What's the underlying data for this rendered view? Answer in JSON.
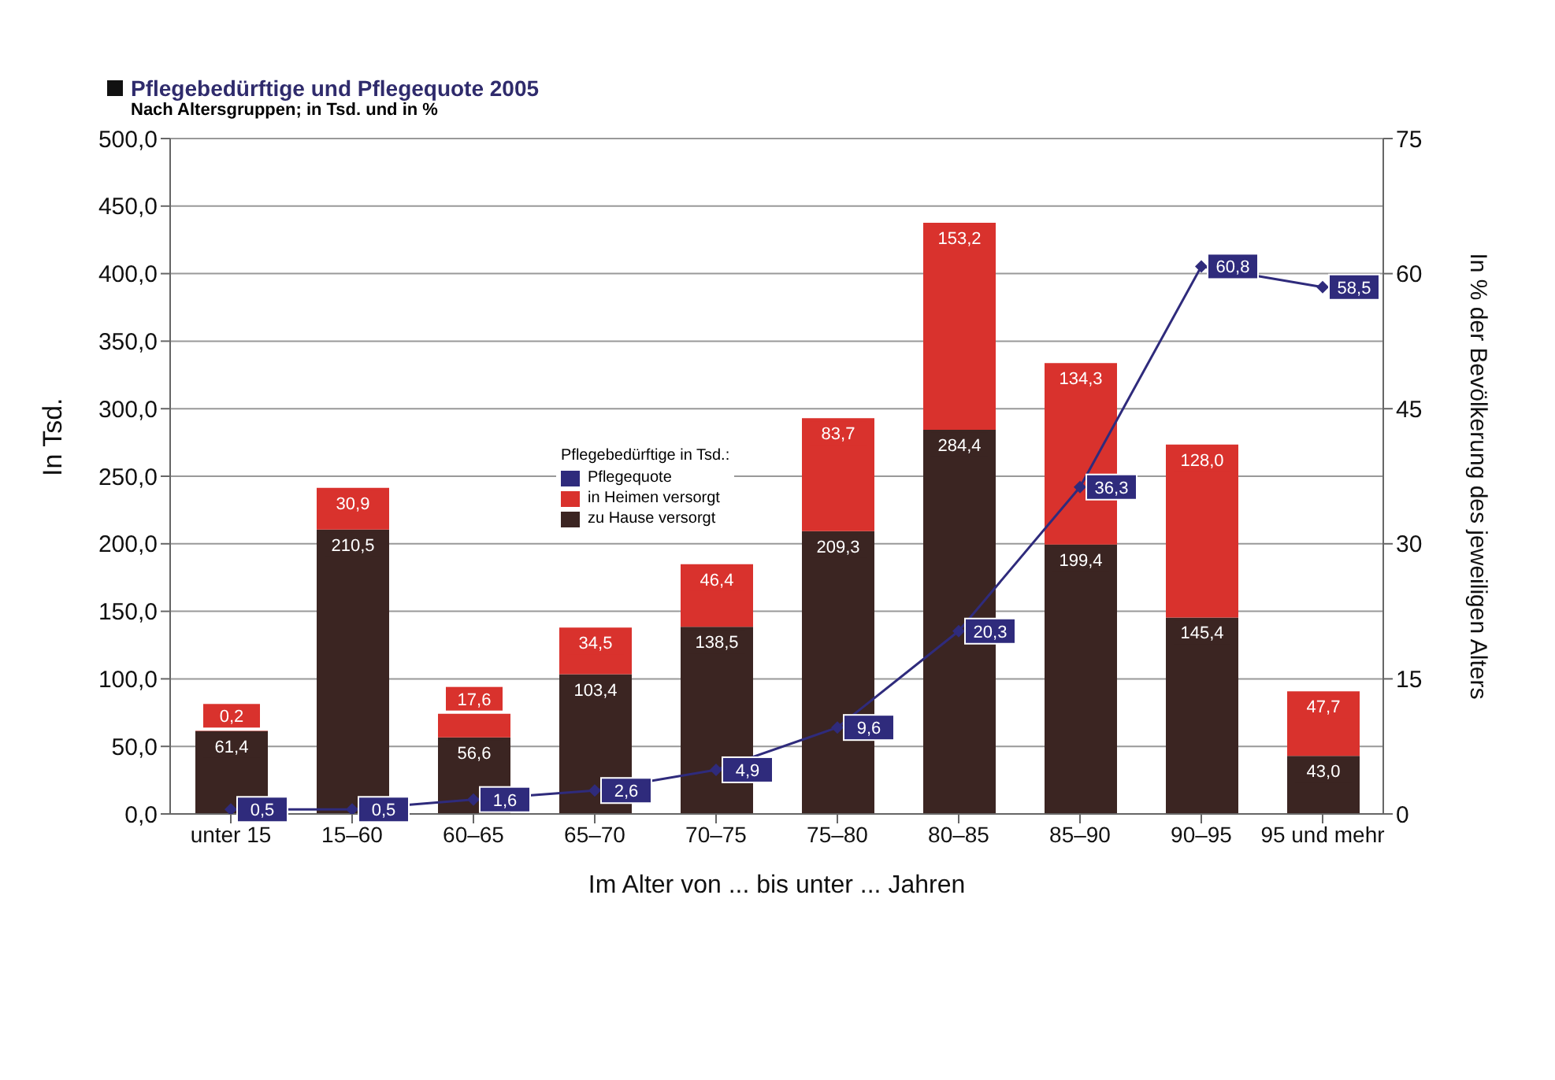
{
  "chart_data": {
    "type": "bar",
    "title": "Pflegebedürftige und Pflegequote 2005",
    "subtitle": "Nach Altersgruppen; in Tsd. und in %",
    "xlabel": "Im Alter von ... bis unter ... Jahren",
    "ylabel": "In Tsd.",
    "y2label": "In % der Bevölkerung des jeweiligen Alters",
    "legend_title": "Pflegebedürftige in Tsd.:",
    "categories": [
      "unter 15",
      "15–60",
      "60–65",
      "65–70",
      "70–75",
      "75–80",
      "80–85",
      "85–90",
      "90–95",
      "95 und mehr"
    ],
    "stacked": true,
    "series": [
      {
        "name": "zu Hause versorgt",
        "color": "#3b2522",
        "values": [
          61.4,
          210.5,
          56.6,
          103.4,
          138.5,
          209.3,
          284.4,
          199.4,
          145.4,
          43.0
        ],
        "value_labels": [
          "61,4",
          "210,5",
          "56,6",
          "103,4",
          "138,5",
          "209,3",
          "284,4",
          "199,4",
          "145,4",
          "43,0"
        ]
      },
      {
        "name": "in Heimen versorgt",
        "color": "#d9322d",
        "values": [
          0.2,
          30.9,
          17.6,
          34.5,
          46.4,
          83.7,
          153.2,
          134.3,
          128.0,
          47.7
        ],
        "value_labels": [
          "0,2",
          "30,9",
          "17,6",
          "34,5",
          "46,4",
          "83,7",
          "153,2",
          "134,3",
          "128,0",
          "47,7"
        ]
      },
      {
        "name": "Pflegequote",
        "type": "line",
        "axis": "y2",
        "color": "#2f2b7c",
        "marker": "diamond",
        "values": [
          0.5,
          0.5,
          1.6,
          2.6,
          4.9,
          9.6,
          20.3,
          36.3,
          60.8,
          58.5
        ],
        "value_labels": [
          "0,5",
          "0,5",
          "1,6",
          "2,6",
          "4,9",
          "9,6",
          "20,3",
          "36,3",
          "60,8",
          "58,5"
        ]
      }
    ],
    "ylim": [
      0,
      500
    ],
    "yticks": [
      {
        "value": 0,
        "label": "0,0"
      },
      {
        "value": 50,
        "label": "50,0"
      },
      {
        "value": 100,
        "label": "100,0"
      },
      {
        "value": 150,
        "label": "150,0"
      },
      {
        "value": 200,
        "label": "200,0"
      },
      {
        "value": 250,
        "label": "250,0"
      },
      {
        "value": 300,
        "label": "300,0"
      },
      {
        "value": 350,
        "label": "350,0"
      },
      {
        "value": 400,
        "label": "400,0"
      },
      {
        "value": 450,
        "label": "450,0"
      },
      {
        "value": 500,
        "label": "500,0"
      }
    ],
    "y2lim": [
      0,
      75
    ],
    "y2ticks": [
      0,
      15,
      30,
      45,
      60,
      75
    ],
    "grid": "y",
    "legend": "center",
    "data_labels": true
  }
}
